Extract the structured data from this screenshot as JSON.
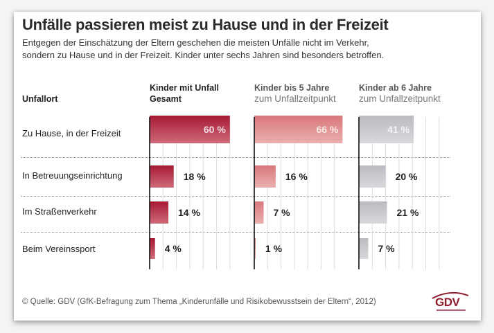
{
  "header": {
    "title": "Unfälle passieren meist zu Hause und in der Freizeit",
    "subtitle_lines": [
      "Entgegen der Einschätzung der Eltern geschehen die meisten Unfälle nicht im Verkehr,",
      "sondern zu Hause und in der Freizeit. Kinder unter sechs Jahren sind besonders betroffen."
    ]
  },
  "columns": {
    "category_header": "Unfallort",
    "panels": [
      {
        "line1": "Kinder mit Unfall",
        "line2": "Gesamt"
      },
      {
        "line1": "Kinder bis 5 Jahre",
        "line2": "zum Unfallzeitpunkt"
      },
      {
        "line1": "Kinder ab 6 Jahre",
        "line2": "zum Unfallzeitpunkt"
      }
    ]
  },
  "chart_data": {
    "type": "bar",
    "orientation": "horizontal",
    "title": "Unfälle passieren meist zu Hause und in der Freizeit",
    "categories": [
      "Zu Hause, in der Freizeit",
      "In Betreuungseinrichtung",
      "Im Straßenverkehr",
      "Beim Vereinssport"
    ],
    "unit": "%",
    "xlim": [
      0,
      60
    ],
    "grid": true,
    "series": [
      {
        "name": "Kinder mit Unfall Gesamt",
        "values": [
          60,
          18,
          14,
          4
        ],
        "color": "#a51a34",
        "color_light": "#d06a7a",
        "label_color_inside": "#f4dde1"
      },
      {
        "name": "Kinder bis 5 Jahre zum Unfallzeitpunkt",
        "values": [
          66,
          16,
          7,
          1
        ],
        "color": "#d9777b",
        "color_light": "#eab0ae",
        "label_color_inside": "#fbe9e8"
      },
      {
        "name": "Kinder ab 6 Jahre zum Unfallzeitpunkt",
        "values": [
          41,
          20,
          21,
          7
        ],
        "color": "#b9bbc0",
        "color_light": "#d8d9dc",
        "label_color_inside": "#f4f4f6"
      }
    ],
    "labels": [
      [
        "60 %",
        "18 %",
        "14 %",
        "4 %"
      ],
      [
        "66 %",
        "16 %",
        "7 %",
        "1 %"
      ],
      [
        "41 %",
        "20 %",
        "21 %",
        "7 %"
      ]
    ]
  },
  "footer": {
    "source": "© Quelle: GDV (GfK-Befragung zum Thema „Kinderunfälle und Risikobewusstsein der Eltern“, 2012)",
    "logo_text": "GDV"
  }
}
